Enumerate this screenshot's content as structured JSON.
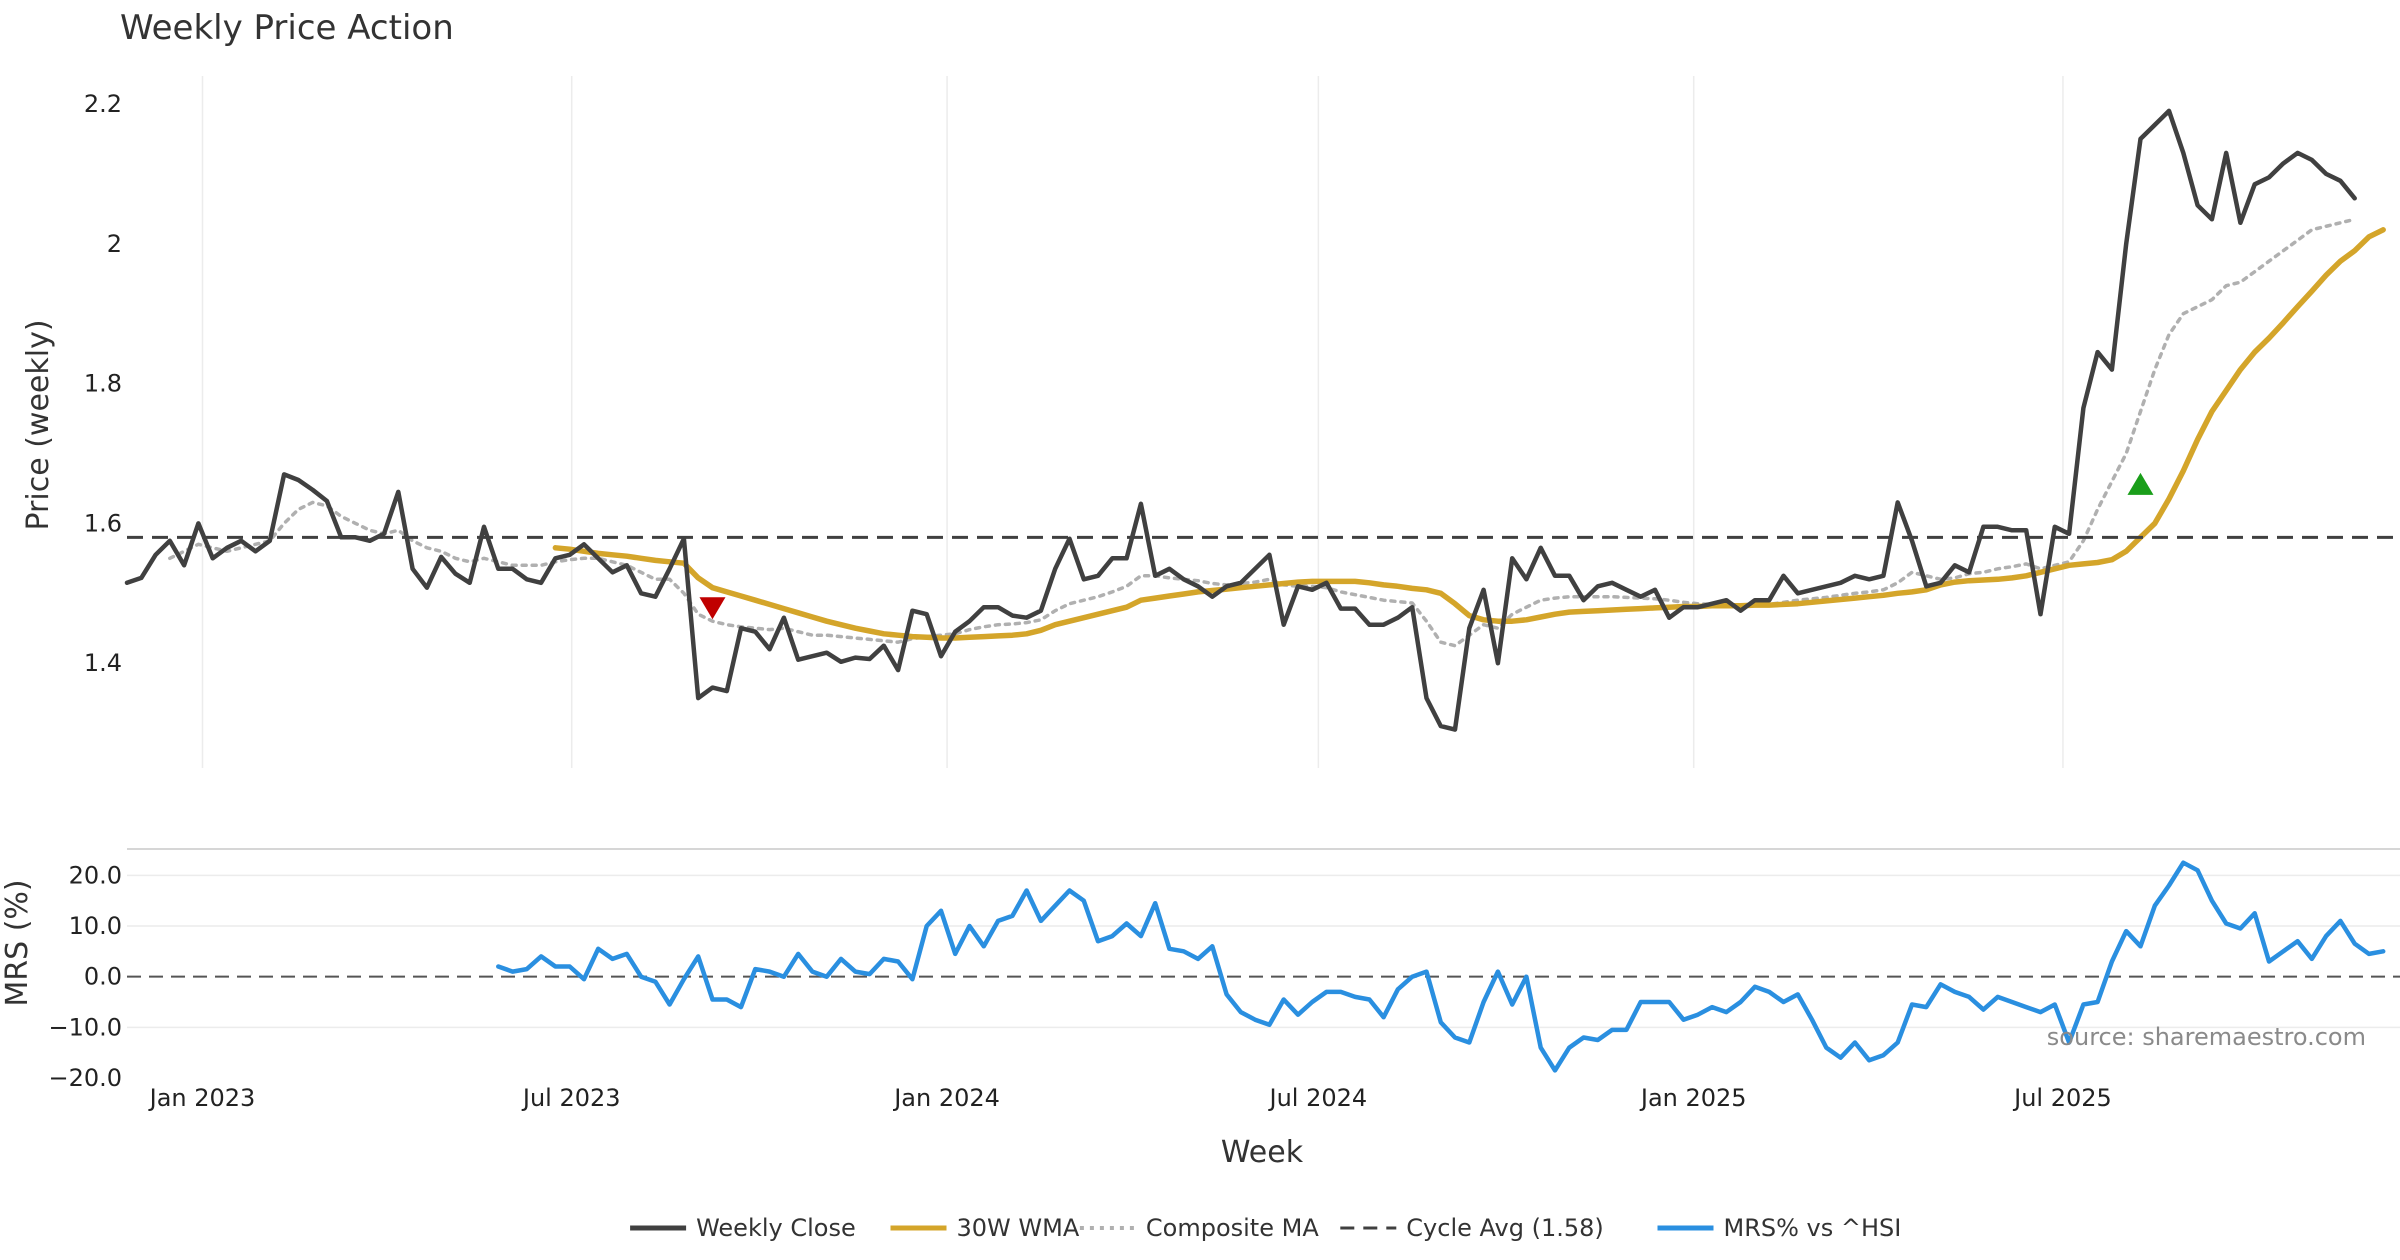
{
  "chart_data": [
    {
      "type": "line",
      "title": "Weekly Price Action",
      "xlabel": "",
      "ylabel": "Price (weekly)",
      "ylim": [
        1.25,
        2.24
      ],
      "yticks": [
        1.4,
        1.6,
        1.8,
        2,
        2.2
      ],
      "ytick_labels": [
        "1.4",
        "1.6",
        "1.8",
        "2",
        "2.2"
      ],
      "x_start": "2022-11-25",
      "x_step_weeks": 1,
      "x_start_week_index": 0,
      "series": [
        {
          "name": "Weekly Close",
          "color": "#404040",
          "style": "solid",
          "values": [
            1.515,
            1.522,
            1.555,
            1.575,
            1.54,
            1.6,
            1.55,
            1.565,
            1.575,
            1.56,
            1.575,
            1.67,
            1.662,
            1.648,
            1.632,
            1.58,
            1.58,
            1.575,
            1.585,
            1.645,
            1.535,
            1.508,
            1.552,
            1.528,
            1.515,
            1.595,
            1.535,
            1.535,
            1.52,
            1.515,
            1.55,
            1.555,
            1.57,
            1.55,
            1.53,
            1.54,
            1.5,
            1.495,
            1.535,
            1.578,
            1.35,
            1.365,
            1.36,
            1.45,
            1.445,
            1.42,
            1.465,
            1.405,
            1.41,
            1.415,
            1.402,
            1.408,
            1.406,
            1.425,
            1.39,
            1.475,
            1.47,
            1.41,
            1.445,
            1.46,
            1.48,
            1.48,
            1.468,
            1.465,
            1.475,
            1.535,
            1.578,
            1.52,
            1.525,
            1.55,
            1.55,
            1.628,
            1.525,
            1.535,
            1.52,
            1.51,
            1.495,
            1.51,
            1.515,
            1.535,
            1.555,
            1.455,
            1.51,
            1.505,
            1.515,
            1.478,
            1.478,
            1.455,
            1.455,
            1.465,
            1.48,
            1.35,
            1.31,
            1.305,
            1.45,
            1.505,
            1.4,
            1.55,
            1.52,
            1.565,
            1.525,
            1.525,
            1.49,
            1.51,
            1.515,
            1.505,
            1.495,
            1.505,
            1.465,
            1.48,
            1.48,
            1.485,
            1.49,
            1.475,
            1.49,
            1.49,
            1.525,
            1.5,
            1.505,
            1.51,
            1.515,
            1.525,
            1.52,
            1.525,
            1.63,
            1.575,
            1.51,
            1.515,
            1.54,
            1.53,
            1.595,
            1.595,
            1.59,
            1.59,
            1.47,
            1.595,
            1.585,
            1.765,
            1.845,
            1.82,
            2.0,
            2.15,
            2.17,
            2.19,
            2.13,
            2.055,
            2.035,
            2.13,
            2.03,
            2.085,
            2.095,
            2.115,
            2.13,
            2.12,
            2.1,
            2.09,
            2.065
          ]
        },
        {
          "name": "30W WMA",
          "color": "#d4a52a",
          "style": "solid",
          "start_week_index": 30,
          "values": [
            1.565,
            1.563,
            1.56,
            1.557,
            1.555,
            1.553,
            1.55,
            1.547,
            1.545,
            1.543,
            1.522,
            1.508,
            1.502,
            1.496,
            1.49,
            1.484,
            1.478,
            1.472,
            1.466,
            1.46,
            1.455,
            1.45,
            1.446,
            1.442,
            1.44,
            1.438,
            1.437,
            1.436,
            1.436,
            1.437,
            1.438,
            1.439,
            1.44,
            1.442,
            1.447,
            1.455,
            1.46,
            1.465,
            1.47,
            1.475,
            1.48,
            1.49,
            1.493,
            1.496,
            1.499,
            1.502,
            1.504,
            1.506,
            1.508,
            1.51,
            1.512,
            1.514,
            1.516,
            1.517,
            1.517,
            1.517,
            1.517,
            1.515,
            1.512,
            1.51,
            1.507,
            1.505,
            1.5,
            1.485,
            1.468,
            1.462,
            1.46,
            1.46,
            1.462,
            1.466,
            1.47,
            1.473,
            1.474,
            1.475,
            1.476,
            1.477,
            1.478,
            1.479,
            1.48,
            1.481,
            1.481,
            1.482,
            1.482,
            1.482,
            1.483,
            1.483,
            1.484,
            1.485,
            1.487,
            1.489,
            1.491,
            1.493,
            1.495,
            1.497,
            1.5,
            1.502,
            1.505,
            1.512,
            1.516,
            1.518,
            1.519,
            1.52,
            1.522,
            1.525,
            1.53,
            1.535,
            1.54,
            1.542,
            1.544,
            1.548,
            1.56,
            1.58,
            1.6,
            1.635,
            1.675,
            1.72,
            1.76,
            1.79,
            1.82,
            1.845,
            1.865,
            1.887,
            1.91,
            1.932,
            1.955,
            1.975,
            1.99,
            2.01,
            2.02
          ]
        },
        {
          "name": "Composite MA",
          "color": "#b0b0b0",
          "style": "dotted",
          "values": [
            null,
            null,
            null,
            1.55,
            1.56,
            1.57,
            1.565,
            1.56,
            1.565,
            1.57,
            1.575,
            1.6,
            1.62,
            1.63,
            1.625,
            1.61,
            1.6,
            1.59,
            1.585,
            1.59,
            1.575,
            1.565,
            1.56,
            1.55,
            1.545,
            1.55,
            1.545,
            1.54,
            1.54,
            1.54,
            1.545,
            1.548,
            1.55,
            1.55,
            1.545,
            1.54,
            1.53,
            1.52,
            1.52,
            1.5,
            1.47,
            1.46,
            1.455,
            1.452,
            1.45,
            1.448,
            1.45,
            1.445,
            1.44,
            1.44,
            1.438,
            1.436,
            1.434,
            1.432,
            1.43,
            1.435,
            1.438,
            1.44,
            1.442,
            1.448,
            1.452,
            1.455,
            1.456,
            1.458,
            1.462,
            1.475,
            1.485,
            1.49,
            1.495,
            1.502,
            1.51,
            1.525,
            1.525,
            1.522,
            1.52,
            1.518,
            1.514,
            1.512,
            1.514,
            1.516,
            1.52,
            1.512,
            1.51,
            1.51,
            1.508,
            1.502,
            1.498,
            1.494,
            1.49,
            1.488,
            1.486,
            1.46,
            1.43,
            1.425,
            1.44,
            1.455,
            1.45,
            1.47,
            1.48,
            1.49,
            1.493,
            1.495,
            1.495,
            1.495,
            1.495,
            1.494,
            1.493,
            1.492,
            1.49,
            1.487,
            1.485,
            1.484,
            1.484,
            1.483,
            1.483,
            1.484,
            1.487,
            1.49,
            1.492,
            1.494,
            1.497,
            1.5,
            1.502,
            1.505,
            1.515,
            1.53,
            1.525,
            1.52,
            1.522,
            1.528,
            1.53,
            1.535,
            1.538,
            1.542,
            1.535,
            1.54,
            1.545,
            1.575,
            1.62,
            1.66,
            1.7,
            1.76,
            1.82,
            1.87,
            1.9,
            1.91,
            1.92,
            1.94,
            1.945,
            1.96,
            1.975,
            1.99,
            2.005,
            2.02,
            2.025,
            2.03,
            2.035
          ]
        },
        {
          "name": "Cycle Avg (1.58)",
          "color": "#404040",
          "style": "dashed",
          "constant": 1.58
        }
      ],
      "markers": [
        {
          "type": "sell",
          "shape": "down-triangle",
          "color": "#c00000",
          "week_index": 41,
          "value": 1.48
        },
        {
          "type": "buy",
          "shape": "up-triangle",
          "color": "#1a9e1a",
          "week_index": 141,
          "value": 1.655
        }
      ]
    },
    {
      "type": "line",
      "title": "",
      "xlabel": "Week",
      "ylabel": "MRS (%)",
      "ylim": [
        -20,
        25
      ],
      "yticks": [
        -20,
        -10,
        0,
        10,
        20
      ],
      "ytick_labels": [
        "−20.0",
        "−10.0",
        "0.0",
        "10.0",
        "20.0"
      ],
      "xtick_labels": [
        "Jan 2023",
        "Jul 2023",
        "Jan 2024",
        "Jul 2024",
        "Jan 2025",
        "Jul 2025"
      ],
      "xtick_dates": [
        "2023-01-01",
        "2023-07-01",
        "2024-01-01",
        "2024-07-01",
        "2025-01-01",
        "2025-07-01"
      ],
      "zero_line": 0,
      "series": [
        {
          "name": "MRS% vs ^HSI",
          "color": "#2a8fe0",
          "style": "solid",
          "start_week_index": 26,
          "values": [
            2,
            1,
            1.5,
            4,
            2,
            2,
            -0.5,
            5.5,
            3.5,
            4.5,
            0,
            -1,
            -5.5,
            -0.5,
            4,
            -4.5,
            -4.5,
            -6,
            1.5,
            1,
            0,
            4.5,
            1,
            0,
            3.5,
            1,
            0.5,
            3.5,
            3,
            -0.5,
            10,
            13,
            4.5,
            10,
            6,
            11,
            12,
            17,
            11,
            14,
            17,
            15,
            7,
            8,
            10.5,
            8,
            14.5,
            5.5,
            5,
            3.5,
            6,
            -3.5,
            -7,
            -8.5,
            -9.5,
            -4.5,
            -7.5,
            -5,
            -3,
            -3,
            -4,
            -4.5,
            -8,
            -2.5,
            0,
            1,
            -9,
            -12,
            -13,
            -5,
            1,
            -5.5,
            0,
            -14,
            -18.5,
            -14,
            -12,
            -12.5,
            -10.5,
            -10.5,
            -5,
            -5,
            -5,
            -8.5,
            -7.5,
            -6,
            -7,
            -5,
            -2,
            -3,
            -5,
            -3.5,
            -8.5,
            -14,
            -16,
            -13,
            -16.5,
            -15.5,
            -13,
            -5.5,
            -6,
            -1.5,
            -3,
            -4,
            -6.5,
            -4,
            -5,
            -6,
            -7,
            -5.5,
            -13,
            -5.5,
            -5,
            3,
            9,
            6,
            14,
            18,
            22.5,
            21,
            15,
            10.5,
            9.5,
            12.5,
            3,
            5,
            7,
            3.5,
            8,
            11,
            6.5,
            4.5,
            5
          ]
        }
      ]
    }
  ],
  "legend": {
    "placement": "bottom-center",
    "items": [
      {
        "label": "Weekly Close",
        "color": "#404040",
        "style": "solid"
      },
      {
        "label": "30W WMA",
        "color": "#d4a52a",
        "style": "solid"
      },
      {
        "label": "Composite MA",
        "color": "#b0b0b0",
        "style": "dotted"
      },
      {
        "label": "Cycle Avg (1.58)",
        "color": "#404040",
        "style": "dashed"
      },
      {
        "label": "MRS% vs ^HSI",
        "color": "#2a8fe0",
        "style": "solid"
      }
    ]
  },
  "source_note": "source: sharemaestro.com"
}
